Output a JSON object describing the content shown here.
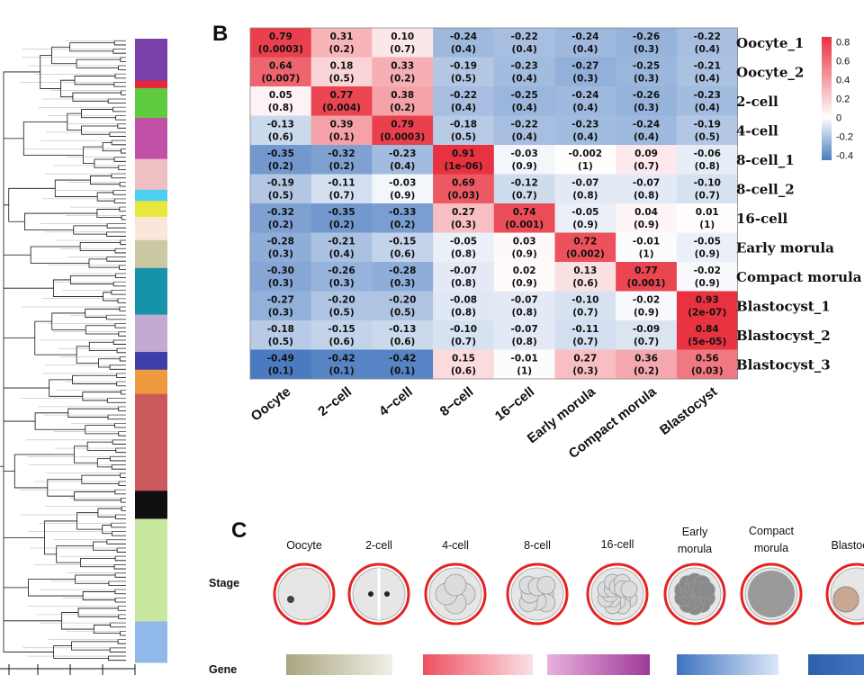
{
  "panels": {
    "b": "B",
    "c": "C"
  },
  "chart_data": [
    {
      "type": "heatmap",
      "title": "",
      "x_categories": [
        "Oocyte",
        "2−cell",
        "4−cell",
        "8−cell",
        "16−cell",
        "Early morula",
        "Compact morula",
        "Blastocyst"
      ],
      "y_categories": [
        "Oocyte_1",
        "Oocyte_2",
        "2-cell",
        "4-cell",
        "8-cell_1",
        "8-cell_2",
        "16-cell",
        "Early morula",
        "Compact morula",
        "Blastocyst_1",
        "Blastocyst_2",
        "Blastocyst_3"
      ],
      "values": [
        [
          0.79,
          0.31,
          0.1,
          -0.24,
          -0.22,
          -0.24,
          -0.26,
          -0.22
        ],
        [
          0.64,
          0.18,
          0.33,
          -0.19,
          -0.23,
          -0.27,
          -0.25,
          -0.21
        ],
        [
          0.05,
          0.77,
          0.38,
          -0.22,
          -0.25,
          -0.24,
          -0.26,
          -0.23
        ],
        [
          -0.13,
          0.39,
          0.79,
          -0.18,
          -0.22,
          -0.23,
          -0.24,
          -0.19
        ],
        [
          -0.35,
          -0.32,
          -0.23,
          0.91,
          -0.03,
          -0.002,
          0.09,
          -0.06
        ],
        [
          -0.19,
          -0.11,
          -0.03,
          0.69,
          -0.12,
          -0.07,
          -0.07,
          -0.1
        ],
        [
          -0.32,
          -0.35,
          -0.33,
          0.27,
          0.74,
          -0.05,
          0.04,
          0.01
        ],
        [
          -0.28,
          -0.21,
          -0.15,
          -0.05,
          0.03,
          0.72,
          -0.01,
          -0.05
        ],
        [
          -0.3,
          -0.26,
          -0.28,
          -0.07,
          0.02,
          0.13,
          0.77,
          -0.02
        ],
        [
          -0.27,
          -0.2,
          -0.2,
          -0.08,
          -0.07,
          -0.1,
          -0.02,
          0.93
        ],
        [
          -0.18,
          -0.15,
          -0.13,
          -0.1,
          -0.07,
          -0.11,
          -0.09,
          0.84
        ],
        [
          -0.49,
          -0.42,
          -0.42,
          0.15,
          -0.01,
          0.27,
          0.36,
          0.56
        ]
      ],
      "value_labels": [
        [
          "0.79",
          "0.31",
          "0.10",
          "-0.24",
          "-0.22",
          "-0.24",
          "-0.26",
          "-0.22"
        ],
        [
          "0.64",
          "0.18",
          "0.33",
          "-0.19",
          "-0.23",
          "-0.27",
          "-0.25",
          "-0.21"
        ],
        [
          "0.05",
          "0.77",
          "0.38",
          "-0.22",
          "-0.25",
          "-0.24",
          "-0.26",
          "-0.23"
        ],
        [
          "-0.13",
          "0.39",
          "0.79",
          "-0.18",
          "-0.22",
          "-0.23",
          "-0.24",
          "-0.19"
        ],
        [
          "-0.35",
          "-0.32",
          "-0.23",
          "0.91",
          "-0.03",
          "-0.002",
          "0.09",
          "-0.06"
        ],
        [
          "-0.19",
          "-0.11",
          "-0.03",
          "0.69",
          "-0.12",
          "-0.07",
          "-0.07",
          "-0.10"
        ],
        [
          "-0.32",
          "-0.35",
          "-0.33",
          "0.27",
          "0.74",
          "-0.05",
          "0.04",
          "0.01"
        ],
        [
          "-0.28",
          "-0.21",
          "-0.15",
          "-0.05",
          "0.03",
          "0.72",
          "-0.01",
          "-0.05"
        ],
        [
          "-0.30",
          "-0.26",
          "-0.28",
          "-0.07",
          "0.02",
          "0.13",
          "0.77",
          "-0.02"
        ],
        [
          "-0.27",
          "-0.20",
          "-0.20",
          "-0.08",
          "-0.07",
          "-0.10",
          "-0.02",
          "0.93"
        ],
        [
          "-0.18",
          "-0.15",
          "-0.13",
          "-0.10",
          "-0.07",
          "-0.11",
          "-0.09",
          "0.84"
        ],
        [
          "-0.49",
          "-0.42",
          "-0.42",
          "0.15",
          "-0.01",
          "0.27",
          "0.36",
          "0.56"
        ]
      ],
      "pvalues": [
        [
          "(0.0003)",
          "(0.2)",
          "(0.7)",
          "(0.4)",
          "(0.4)",
          "(0.4)",
          "(0.3)",
          "(0.4)"
        ],
        [
          "(0.007)",
          "(0.5)",
          "(0.2)",
          "(0.5)",
          "(0.4)",
          "(0.3)",
          "(0.3)",
          "(0.4)"
        ],
        [
          "(0.8)",
          "(0.004)",
          "(0.2)",
          "(0.4)",
          "(0.4)",
          "(0.4)",
          "(0.3)",
          "(0.4)"
        ],
        [
          "(0.6)",
          "(0.1)",
          "(0.0003)",
          "(0.5)",
          "(0.4)",
          "(0.4)",
          "(0.4)",
          "(0.5)"
        ],
        [
          "(0.2)",
          "(0.2)",
          "(0.4)",
          "(1e-06)",
          "(0.9)",
          "(1)",
          "(0.7)",
          "(0.8)"
        ],
        [
          "(0.5)",
          "(0.7)",
          "(0.9)",
          "(0.03)",
          "(0.7)",
          "(0.8)",
          "(0.8)",
          "(0.7)"
        ],
        [
          "(0.2)",
          "(0.2)",
          "(0.2)",
          "(0.3)",
          "(0.001)",
          "(0.9)",
          "(0.9)",
          "(1)"
        ],
        [
          "(0.3)",
          "(0.4)",
          "(0.6)",
          "(0.8)",
          "(0.9)",
          "(0.002)",
          "(1)",
          "(0.9)"
        ],
        [
          "(0.3)",
          "(0.3)",
          "(0.3)",
          "(0.8)",
          "(0.9)",
          "(0.6)",
          "(0.001)",
          "(0.9)"
        ],
        [
          "(0.3)",
          "(0.5)",
          "(0.5)",
          "(0.8)",
          "(0.8)",
          "(0.7)",
          "(0.9)",
          "(2e-07)"
        ],
        [
          "(0.5)",
          "(0.6)",
          "(0.6)",
          "(0.7)",
          "(0.8)",
          "(0.7)",
          "(0.7)",
          "(5e-05)"
        ],
        [
          "(0.1)",
          "(0.1)",
          "(0.1)",
          "(0.6)",
          "(1)",
          "(0.3)",
          "(0.2)",
          "(0.03)"
        ]
      ],
      "color_scale": {
        "min": -0.45,
        "max": 0.85,
        "low_color": "#4a7bc0",
        "mid_color": "#ffffff",
        "high_color": "#e8323f",
        "ticks": [
          0.8,
          0.6,
          0.4,
          0.2,
          0,
          -0.2,
          -0.4
        ],
        "tick_labels": [
          "0.8",
          "0.6",
          "0.4",
          "0.2",
          "0",
          "-0.2",
          "-0.4"
        ]
      }
    }
  ],
  "dendrogram": {
    "cluster_colors": [
      "#7b3fa8",
      "#e8263a",
      "#5fc93f",
      "#c150a8",
      "#eec0c4",
      "#4dcff2",
      "#e9e83a",
      "#fbe6da",
      "#cbc8a4",
      "#1693a8",
      "#c2aad2",
      "#3d3fa8",
      "#f09a40",
      "#cc5a5c",
      "#0f0f0f",
      "#c8e8a0",
      "#90b8e8"
    ],
    "cluster_weights": [
      45,
      8,
      32,
      44,
      33,
      12,
      17,
      25,
      30,
      50,
      40,
      19,
      26,
      104,
      30,
      110,
      44
    ]
  },
  "panel_c": {
    "stages": [
      "Oocyte",
      "2-cell",
      "4-cell",
      "8-cell",
      "16-cell",
      "Early morula",
      "Compact morula",
      "Blastocyst"
    ],
    "row_labels": {
      "stage": "Stage",
      "gene": "Gene"
    },
    "gene_bars": [
      {
        "from": "#aaa57e",
        "to": "#f0f0e6"
      },
      {
        "from": "#ef5060",
        "to": "#fbe0e4"
      },
      {
        "from": "#e8b0dc",
        "to": "#9e3a9a"
      },
      {
        "from": "#3f73c0",
        "to": "#dbe8f8"
      },
      {
        "from": "#2e5fae",
        "to": "#3f73c0"
      }
    ]
  }
}
